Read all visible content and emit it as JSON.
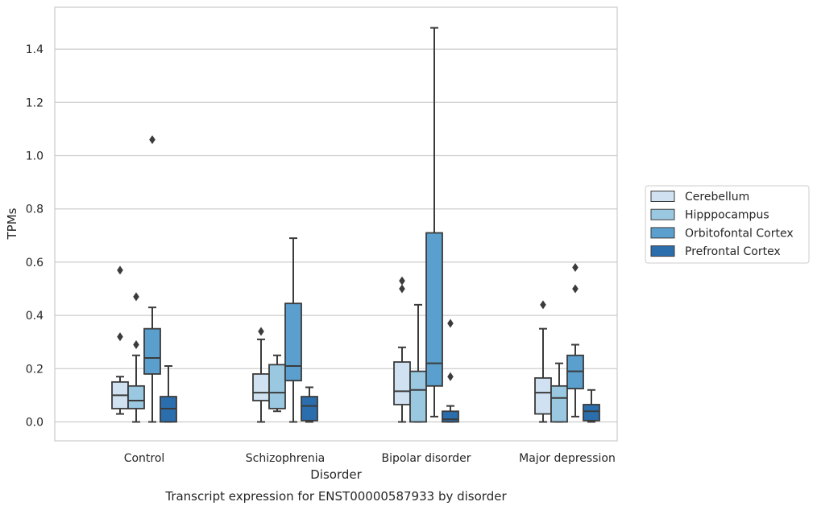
{
  "chart_data": {
    "type": "box",
    "title": "",
    "caption": "Transcript expression for ENST00000587933 by disorder",
    "xlabel": "Disorder",
    "ylabel": "TPMs",
    "ylim": [
      -0.07,
      1.55
    ],
    "yticks": [
      "0.0",
      "0.2",
      "0.4",
      "0.6",
      "0.8",
      "1.0",
      "1.2",
      "1.4"
    ],
    "ytick_values": [
      0.0,
      0.2,
      0.4,
      0.6,
      0.8,
      1.0,
      1.2,
      1.4
    ],
    "grid": "horizontal",
    "legend_position": "right",
    "categories": [
      "Control",
      "Schizophrenia",
      "Bipolar disorder",
      "Major depression"
    ],
    "series": [
      {
        "name": "Cerebellum",
        "color": "#d0e2f2",
        "boxes": [
          {
            "whislo": 0.03,
            "q1": 0.05,
            "med": 0.1,
            "q3": 0.15,
            "whishi": 0.17,
            "fliers": [
              0.32,
              0.57
            ]
          },
          {
            "whislo": 0.0,
            "q1": 0.08,
            "med": 0.11,
            "q3": 0.18,
            "whishi": 0.31,
            "fliers": [
              0.34
            ]
          },
          {
            "whislo": 0.0,
            "q1": 0.065,
            "med": 0.115,
            "q3": 0.225,
            "whishi": 0.28,
            "fliers": [
              0.5,
              0.53
            ]
          },
          {
            "whislo": 0.0,
            "q1": 0.03,
            "med": 0.11,
            "q3": 0.165,
            "whishi": 0.35,
            "fliers": [
              0.44
            ]
          }
        ]
      },
      {
        "name": "Hipppocampus",
        "color": "#9ac8e0",
        "boxes": [
          {
            "whislo": 0.0,
            "q1": 0.05,
            "med": 0.08,
            "q3": 0.135,
            "whishi": 0.25,
            "fliers": [
              0.29,
              0.47
            ]
          },
          {
            "whislo": 0.04,
            "q1": 0.05,
            "med": 0.11,
            "q3": 0.215,
            "whishi": 0.25,
            "fliers": []
          },
          {
            "whislo": 0.0,
            "q1": 0.0,
            "med": 0.12,
            "q3": 0.19,
            "whishi": 0.44,
            "fliers": []
          },
          {
            "whislo": 0.0,
            "q1": 0.0,
            "med": 0.09,
            "q3": 0.135,
            "whishi": 0.22,
            "fliers": []
          }
        ]
      },
      {
        "name": "Orbitofontal Cortex",
        "color": "#5a9fcd",
        "boxes": [
          {
            "whislo": 0.0,
            "q1": 0.18,
            "med": 0.24,
            "q3": 0.35,
            "whishi": 0.43,
            "fliers": [
              1.06
            ]
          },
          {
            "whislo": 0.0,
            "q1": 0.155,
            "med": 0.21,
            "q3": 0.445,
            "whishi": 0.69,
            "fliers": []
          },
          {
            "whislo": 0.02,
            "q1": 0.135,
            "med": 0.22,
            "q3": 0.71,
            "whishi": 1.48,
            "fliers": []
          },
          {
            "whislo": 0.02,
            "q1": 0.125,
            "med": 0.19,
            "q3": 0.25,
            "whishi": 0.29,
            "fliers": [
              0.5,
              0.58
            ]
          }
        ]
      },
      {
        "name": "Prefrontal Cortex",
        "color": "#2b6eae",
        "boxes": [
          {
            "whislo": 0.0,
            "q1": 0.0,
            "med": 0.05,
            "q3": 0.095,
            "whishi": 0.21,
            "fliers": []
          },
          {
            "whislo": 0.0,
            "q1": 0.005,
            "med": 0.06,
            "q3": 0.095,
            "whishi": 0.13,
            "fliers": []
          },
          {
            "whislo": 0.0,
            "q1": 0.0,
            "med": 0.01,
            "q3": 0.04,
            "whishi": 0.06,
            "fliers": [
              0.17,
              0.37
            ]
          },
          {
            "whislo": 0.0,
            "q1": 0.005,
            "med": 0.04,
            "q3": 0.065,
            "whishi": 0.12,
            "fliers": []
          }
        ]
      }
    ]
  }
}
